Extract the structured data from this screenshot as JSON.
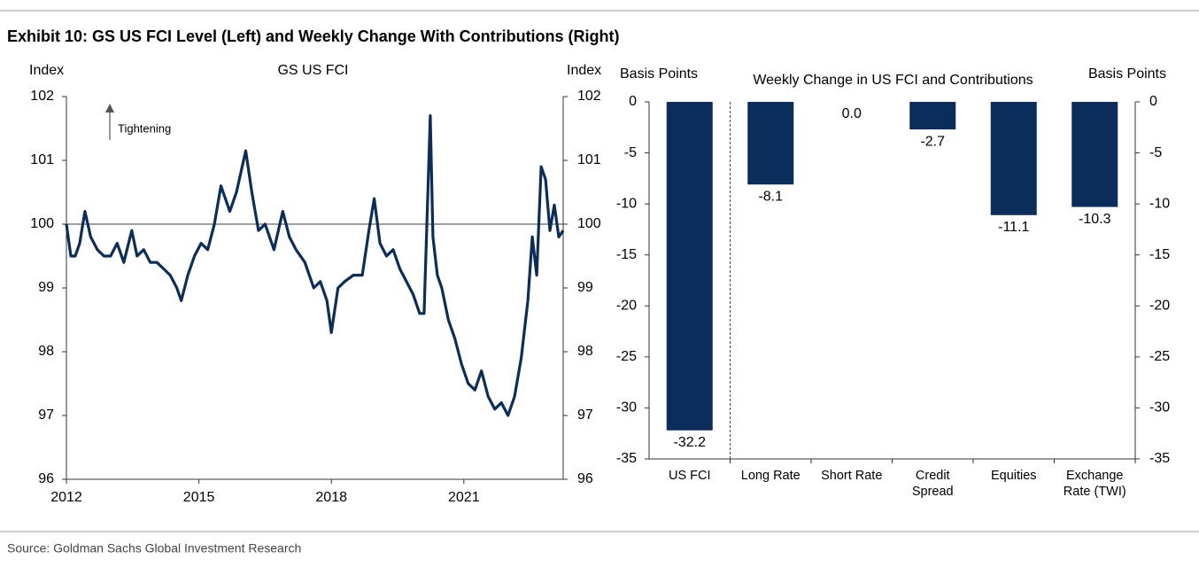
{
  "title": "Exhibit 10: GS US FCI Level (Left) and Weekly Change With Contributions (Right)",
  "source": "Source: Goldman Sachs Global Investment Research",
  "chart_data": [
    {
      "type": "line",
      "title": "GS US FCI",
      "y_label": "Index",
      "y2_label": "Index",
      "annotation": "Tightening",
      "color": "#0b2d5b",
      "hline": 100,
      "xlim": [
        2012,
        2023.25
      ],
      "xticks": [
        2012,
        2015,
        2018,
        2021
      ],
      "ylim": [
        96,
        102
      ],
      "yticks": [
        96,
        97,
        98,
        99,
        100,
        101,
        102
      ],
      "y2lim": [
        96,
        102
      ],
      "y2ticks": [
        96,
        97,
        98,
        99,
        100,
        101,
        102
      ],
      "x": [
        2012.0,
        2012.1,
        2012.2,
        2012.3,
        2012.42,
        2012.55,
        2012.7,
        2012.85,
        2013.0,
        2013.15,
        2013.3,
        2013.48,
        2013.6,
        2013.75,
        2013.9,
        2014.05,
        2014.2,
        2014.35,
        2014.5,
        2014.6,
        2014.75,
        2014.9,
        2015.05,
        2015.2,
        2015.35,
        2015.5,
        2015.7,
        2015.85,
        2016.06,
        2016.2,
        2016.35,
        2016.5,
        2016.7,
        2016.9,
        2017.05,
        2017.2,
        2017.4,
        2017.6,
        2017.75,
        2017.9,
        2018.0,
        2018.15,
        2018.3,
        2018.5,
        2018.7,
        2018.85,
        2018.97,
        2019.1,
        2019.25,
        2019.4,
        2019.55,
        2019.7,
        2019.85,
        2020.0,
        2020.1,
        2020.24,
        2020.3,
        2020.4,
        2020.5,
        2020.65,
        2020.8,
        2020.95,
        2021.1,
        2021.25,
        2021.4,
        2021.55,
        2021.7,
        2021.85,
        2022.0,
        2022.15,
        2022.3,
        2022.45,
        2022.55,
        2022.65,
        2022.75,
        2022.85,
        2022.95,
        2023.05,
        2023.15,
        2023.25
      ],
      "values": [
        100.0,
        99.5,
        99.5,
        99.7,
        100.2,
        99.8,
        99.6,
        99.5,
        99.5,
        99.7,
        99.4,
        99.9,
        99.5,
        99.6,
        99.4,
        99.4,
        99.3,
        99.2,
        99.0,
        98.8,
        99.2,
        99.5,
        99.7,
        99.6,
        100.0,
        100.6,
        100.2,
        100.5,
        101.15,
        100.5,
        99.9,
        100.0,
        99.6,
        100.2,
        99.8,
        99.6,
        99.4,
        99.0,
        99.1,
        98.8,
        98.3,
        99.0,
        99.1,
        99.2,
        99.2,
        99.9,
        100.4,
        99.7,
        99.5,
        99.6,
        99.3,
        99.1,
        98.9,
        98.6,
        98.6,
        101.7,
        99.8,
        99.2,
        99.0,
        98.5,
        98.2,
        97.8,
        97.5,
        97.4,
        97.7,
        97.3,
        97.1,
        97.2,
        97.0,
        97.3,
        97.9,
        98.8,
        99.8,
        99.2,
        100.9,
        100.7,
        99.9,
        100.3,
        99.8,
        99.9
      ]
    },
    {
      "type": "bar",
      "title": "Weekly Change in US FCI and Contributions",
      "y_label": "Basis Points",
      "y2_label": "Basis Points",
      "color": "#0b2d5b",
      "categories": [
        "US FCI",
        "Long Rate",
        "Short Rate",
        "Credit Spread",
        "Equities",
        "Exchange Rate (TWI)"
      ],
      "values": [
        -32.2,
        -8.1,
        0.0,
        -2.7,
        -11.1,
        -10.3
      ],
      "value_labels": [
        "-32.2",
        "-8.1",
        "0.0",
        "-2.7",
        "-11.1",
        "-10.3"
      ],
      "ylim": [
        -35,
        0
      ],
      "yticks": [
        0,
        -5,
        -10,
        -15,
        -20,
        -25,
        -30,
        -35
      ],
      "y2lim": [
        -35,
        0
      ],
      "y2ticks": [
        0,
        -5,
        -10,
        -15,
        -20,
        -25,
        -30,
        -35
      ]
    }
  ]
}
